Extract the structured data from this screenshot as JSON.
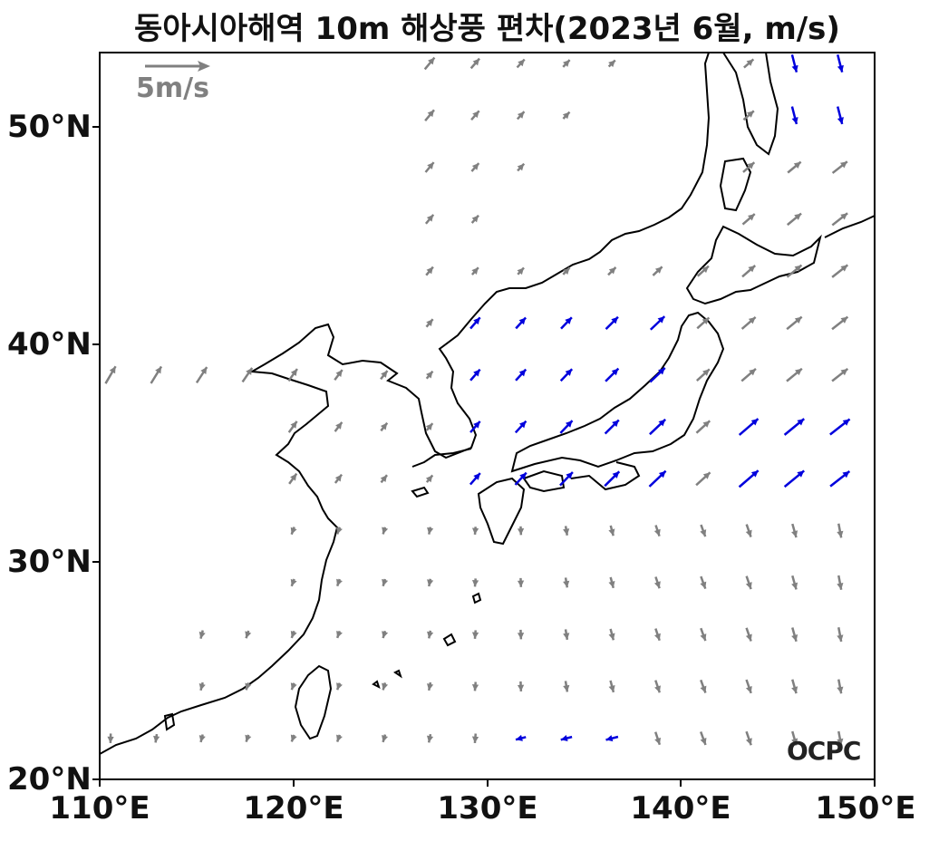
{
  "title": "동아시아해역 10m 해상풍 편차(2023년 6월, m/s)",
  "x_ticks": [
    "110°E",
    "120°E",
    "130°E",
    "140°E",
    "150°E"
  ],
  "y_ticks": [
    "50°N",
    "40°N",
    "30°N",
    "20°N"
  ],
  "scale": {
    "label": "5m/s",
    "value": 5
  },
  "logo": "OCPC",
  "colors": {
    "normal_arrow": "#808080",
    "significant_arrow": "#0000dd",
    "coast": "#000000"
  },
  "chart_data": {
    "type": "vector-field",
    "title": "동아시아해역 10m 해상풍 편차(2023년 6월, m/s)",
    "lon_range": [
      110,
      150
    ],
    "lat_range": [
      20,
      53.3
    ],
    "units": "m/s",
    "grid_spacing_deg": 2.5
  }
}
